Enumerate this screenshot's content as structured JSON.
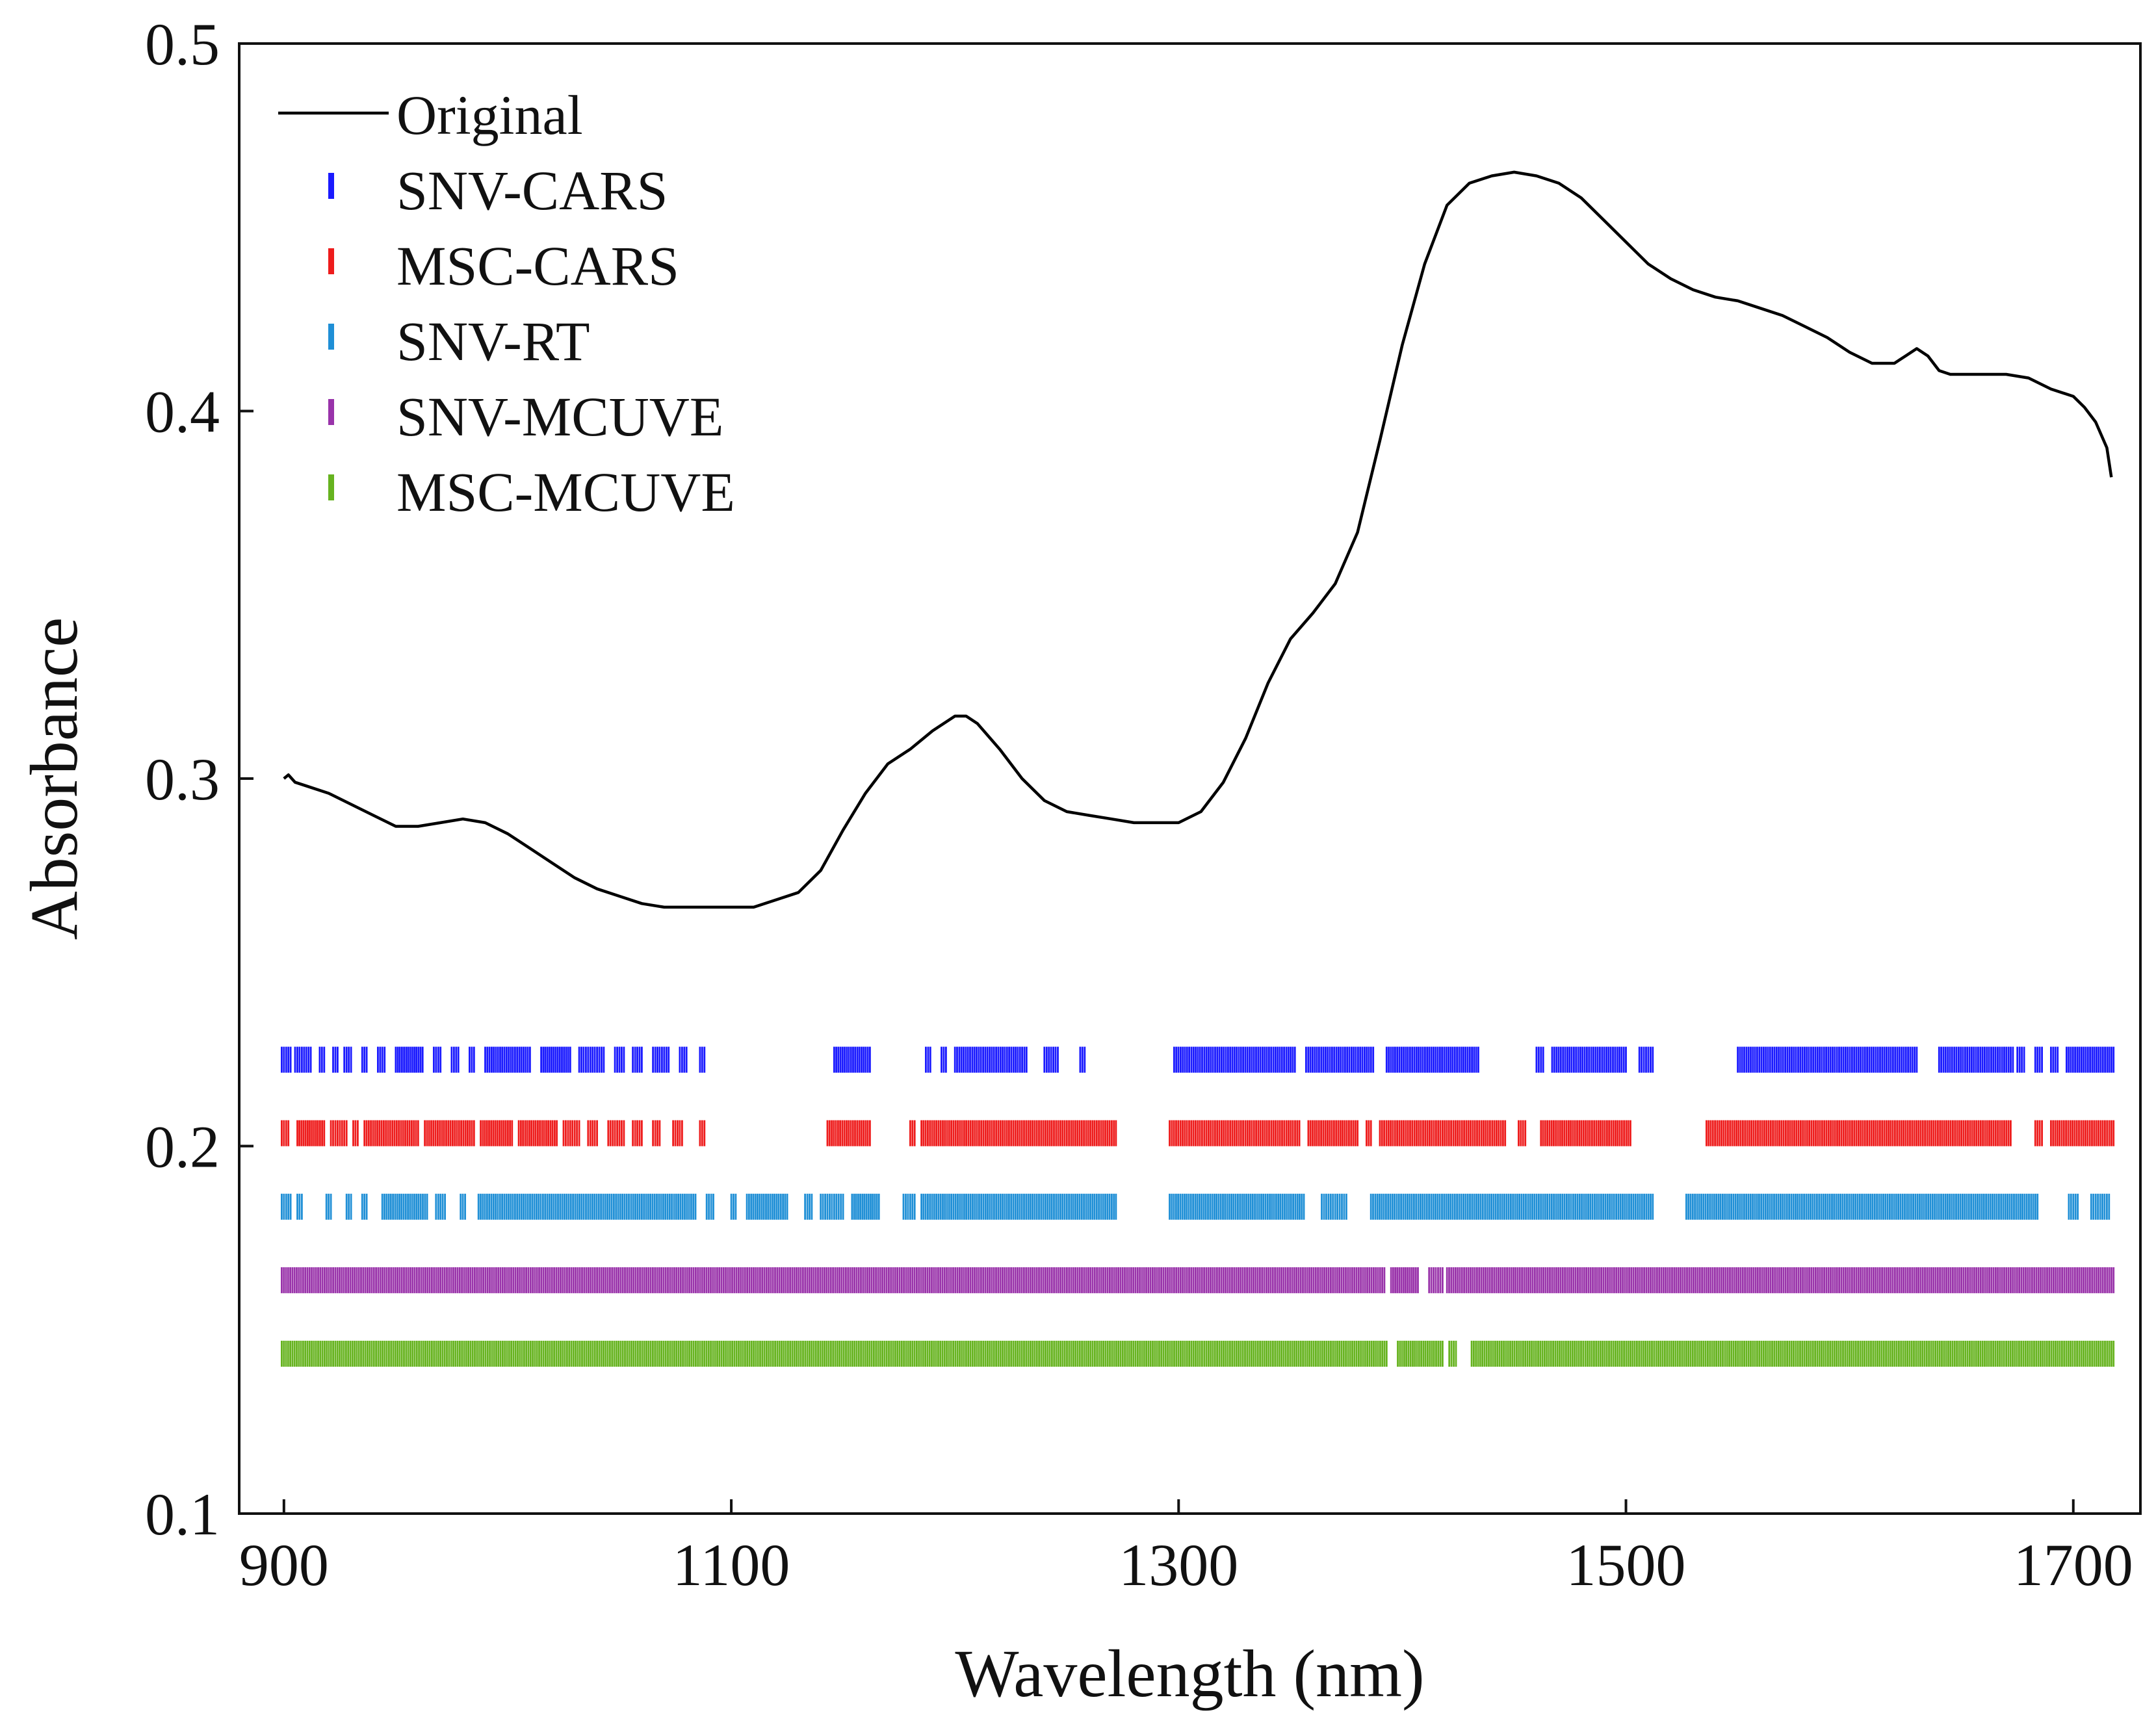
{
  "chart_data": {
    "type": "line",
    "title": "",
    "xlabel": "Wavelength (nm)",
    "ylabel": "Absorbance",
    "xlim": [
      880,
      1730
    ],
    "ylim": [
      0.1,
      0.5
    ],
    "xticks": [
      900,
      1100,
      1300,
      1500,
      1700
    ],
    "yticks": [
      0.1,
      0.2,
      0.3,
      0.4,
      0.5
    ],
    "xtick_labels": [
      "900",
      "1100",
      "1300",
      "1500",
      "1700"
    ],
    "ytick_labels": [
      "0.1",
      "0.2",
      "0.3",
      "0.4",
      "0.5"
    ],
    "grid": false,
    "legend_position": "top-left",
    "series": [
      {
        "name": "Original",
        "kind": "line",
        "color": "#000000",
        "x": [
          900,
          902,
          905,
          910,
          920,
          930,
          940,
          950,
          960,
          970,
          980,
          990,
          1000,
          1010,
          1020,
          1030,
          1040,
          1050,
          1060,
          1070,
          1080,
          1090,
          1100,
          1110,
          1120,
          1130,
          1140,
          1150,
          1160,
          1170,
          1180,
          1190,
          1200,
          1205,
          1210,
          1220,
          1230,
          1240,
          1250,
          1260,
          1270,
          1280,
          1290,
          1300,
          1310,
          1320,
          1330,
          1340,
          1350,
          1360,
          1370,
          1380,
          1390,
          1400,
          1410,
          1420,
          1430,
          1440,
          1450,
          1460,
          1470,
          1480,
          1490,
          1500,
          1510,
          1520,
          1530,
          1540,
          1550,
          1560,
          1570,
          1580,
          1590,
          1600,
          1610,
          1620,
          1625,
          1630,
          1635,
          1640,
          1645,
          1650,
          1660,
          1670,
          1680,
          1690,
          1700,
          1705,
          1710,
          1715,
          1717
        ],
        "y": [
          0.3,
          0.301,
          0.299,
          0.298,
          0.296,
          0.293,
          0.29,
          0.287,
          0.287,
          0.288,
          0.289,
          0.288,
          0.285,
          0.281,
          0.277,
          0.273,
          0.27,
          0.268,
          0.266,
          0.265,
          0.265,
          0.265,
          0.265,
          0.265,
          0.267,
          0.269,
          0.275,
          0.286,
          0.296,
          0.304,
          0.308,
          0.313,
          0.317,
          0.317,
          0.315,
          0.308,
          0.3,
          0.294,
          0.291,
          0.29,
          0.289,
          0.288,
          0.288,
          0.288,
          0.291,
          0.299,
          0.311,
          0.326,
          0.338,
          0.345,
          0.353,
          0.367,
          0.392,
          0.418,
          0.44,
          0.456,
          0.462,
          0.464,
          0.465,
          0.464,
          0.462,
          0.458,
          0.452,
          0.446,
          0.44,
          0.436,
          0.433,
          0.431,
          0.43,
          0.428,
          0.426,
          0.423,
          0.42,
          0.416,
          0.413,
          0.413,
          0.415,
          0.417,
          0.415,
          0.411,
          0.41,
          0.41,
          0.41,
          0.41,
          0.409,
          0.406,
          0.404,
          0.401,
          0.397,
          0.39,
          0.382
        ]
      },
      {
        "name": "SNV-CARS",
        "kind": "selected-variables",
        "color": "#1a1aff",
        "y_level": 0.2235,
        "ranges": [
          [
            899,
            903
          ],
          [
            905,
            912
          ],
          [
            916,
            918
          ],
          [
            922,
            924
          ],
          [
            927,
            930
          ],
          [
            935,
            937
          ],
          [
            942,
            945
          ],
          [
            950,
            962
          ],
          [
            967,
            970
          ],
          [
            975,
            978
          ],
          [
            983,
            985
          ],
          [
            990,
            1010
          ],
          [
            1015,
            1028
          ],
          [
            1032,
            1043
          ],
          [
            1048,
            1052
          ],
          [
            1056,
            1060
          ],
          [
            1065,
            1072
          ],
          [
            1077,
            1080
          ],
          [
            1086,
            1088
          ],
          [
            1146,
            1162
          ],
          [
            1187,
            1189
          ],
          [
            1194,
            1196
          ],
          [
            1200,
            1232
          ],
          [
            1240,
            1246
          ],
          [
            1256,
            1258
          ],
          [
            1298,
            1352
          ],
          [
            1357,
            1387
          ],
          [
            1393,
            1434
          ],
          [
            1460,
            1463
          ],
          [
            1467,
            1500
          ],
          [
            1506,
            1512
          ],
          [
            1550,
            1630
          ],
          [
            1640,
            1673
          ],
          [
            1675,
            1678
          ],
          [
            1683,
            1686
          ],
          [
            1690,
            1693
          ],
          [
            1697,
            1718
          ]
        ]
      },
      {
        "name": "MSC-CARS",
        "kind": "selected-variables",
        "color": "#ee1c1c",
        "y_level": 0.2035,
        "ranges": [
          [
            899,
            902
          ],
          [
            906,
            918
          ],
          [
            921,
            928
          ],
          [
            931,
            933
          ],
          [
            936,
            960
          ],
          [
            963,
            985
          ],
          [
            988,
            1002
          ],
          [
            1005,
            1022
          ],
          [
            1025,
            1032
          ],
          [
            1036,
            1040
          ],
          [
            1045,
            1052
          ],
          [
            1056,
            1060
          ],
          [
            1065,
            1068
          ],
          [
            1074,
            1078
          ],
          [
            1086,
            1088
          ],
          [
            1143,
            1162
          ],
          [
            1180,
            1182
          ],
          [
            1185,
            1272
          ],
          [
            1296,
            1354
          ],
          [
            1358,
            1380
          ],
          [
            1384,
            1386
          ],
          [
            1390,
            1446
          ],
          [
            1452,
            1455
          ],
          [
            1462,
            1502
          ],
          [
            1536,
            1672
          ],
          [
            1683,
            1686
          ],
          [
            1690,
            1718
          ]
        ]
      },
      {
        "name": "SNV-RT",
        "kind": "selected-variables",
        "color": "#1f8fd6",
        "y_level": 0.1835,
        "ranges": [
          [
            899,
            903
          ],
          [
            906,
            908
          ],
          [
            919,
            921
          ],
          [
            928,
            930
          ],
          [
            935,
            937
          ],
          [
            944,
            964
          ],
          [
            968,
            972
          ],
          [
            979,
            981
          ],
          [
            987,
            1084
          ],
          [
            1089,
            1092
          ],
          [
            1100,
            1102
          ],
          [
            1107,
            1125
          ],
          [
            1133,
            1136
          ],
          [
            1140,
            1150
          ],
          [
            1154,
            1166
          ],
          [
            1177,
            1182
          ],
          [
            1185,
            1272
          ],
          [
            1296,
            1356
          ],
          [
            1364,
            1375
          ],
          [
            1386,
            1512
          ],
          [
            1527,
            1684
          ],
          [
            1698,
            1702
          ],
          [
            1708,
            1716
          ]
        ]
      },
      {
        "name": "SNV-MCUVE",
        "kind": "selected-variables",
        "color": "#9933aa",
        "y_level": 0.1635,
        "ranges": [
          [
            899,
            1392
          ],
          [
            1395,
            1407
          ],
          [
            1412,
            1418
          ],
          [
            1420,
            1718
          ]
        ]
      },
      {
        "name": "MSC-MCUVE",
        "kind": "selected-variables",
        "color": "#66b31f",
        "y_level": 0.1435,
        "ranges": [
          [
            899,
            1393
          ],
          [
            1398,
            1418
          ],
          [
            1421,
            1424
          ],
          [
            1431,
            1718
          ]
        ]
      }
    ]
  }
}
